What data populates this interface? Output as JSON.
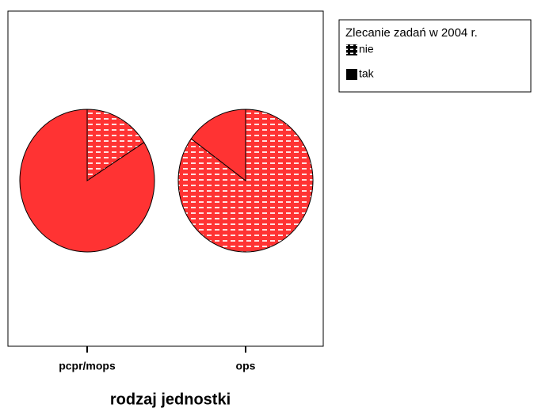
{
  "chart_data": {
    "type": "pie",
    "legend_title": "Zlecanie zadań w 2004 r.",
    "x_label": "rodzaj jednostki",
    "categories": [
      "pcpr/mops",
      "ops"
    ],
    "series": [
      {
        "name": "nie",
        "color": "#ff3333",
        "pattern": true,
        "values": [
          16,
          85
        ]
      },
      {
        "name": "tak",
        "color": "#ff3333",
        "pattern": false,
        "values": [
          84,
          15
        ]
      }
    ],
    "legend": "top-right"
  }
}
